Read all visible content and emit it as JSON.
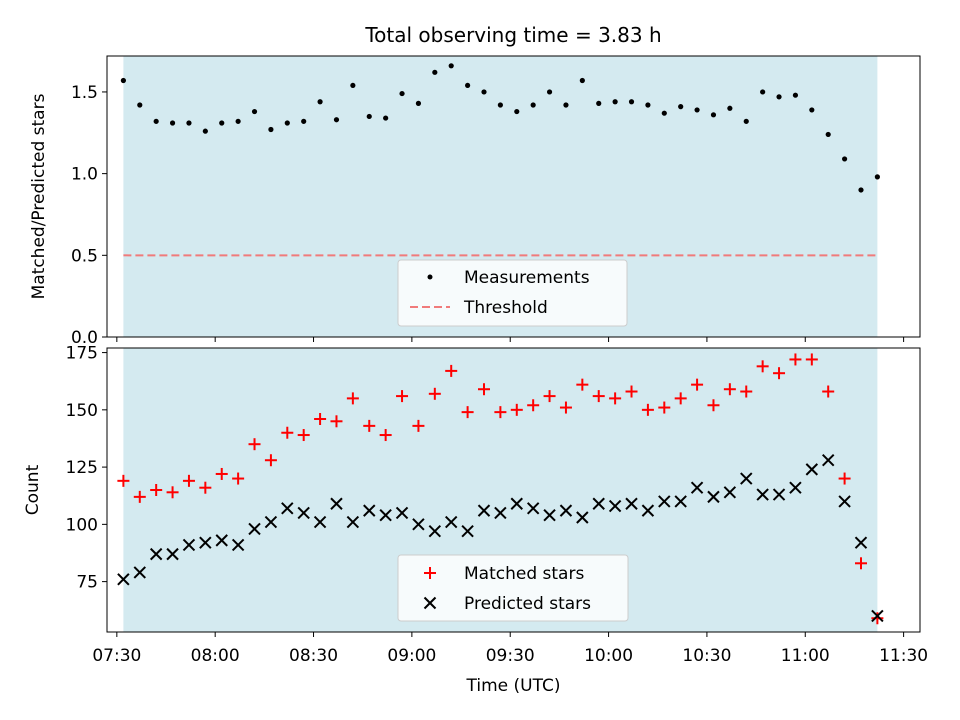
{
  "chart_data": [
    {
      "type": "scatter",
      "title": "Total observing time = 3.83 h",
      "xlabel": "",
      "ylabel": "Matched/Predicted stars",
      "ylim": [
        0,
        1.72
      ],
      "yticks": [
        "0.0",
        "0.5",
        "1.0",
        "1.5"
      ],
      "shaded_background": "#d4eaf0",
      "legend_position": "lower-center",
      "series": [
        {
          "name": "Measurements",
          "marker": "dot",
          "color": "#000000",
          "x": [
            "07:32",
            "07:37",
            "07:42",
            "07:47",
            "07:52",
            "07:57",
            "08:02",
            "08:07",
            "08:12",
            "08:17",
            "08:22",
            "08:27",
            "08:32",
            "08:37",
            "08:42",
            "08:47",
            "08:52",
            "08:57",
            "09:02",
            "09:07",
            "09:12",
            "09:17",
            "09:22",
            "09:27",
            "09:32",
            "09:37",
            "09:42",
            "09:47",
            "09:52",
            "09:57",
            "10:02",
            "10:07",
            "10:12",
            "10:17",
            "10:22",
            "10:27",
            "10:32",
            "10:37",
            "10:42",
            "10:47",
            "10:52",
            "10:57",
            "11:02",
            "11:07",
            "11:12",
            "11:17",
            "11:22"
          ],
          "y": [
            1.57,
            1.42,
            1.32,
            1.31,
            1.31,
            1.26,
            1.31,
            1.32,
            1.38,
            1.27,
            1.31,
            1.32,
            1.44,
            1.33,
            1.54,
            1.35,
            1.34,
            1.49,
            1.43,
            1.62,
            1.66,
            1.54,
            1.5,
            1.42,
            1.38,
            1.42,
            1.5,
            1.42,
            1.57,
            1.43,
            1.44,
            1.44,
            1.42,
            1.37,
            1.41,
            1.39,
            1.36,
            1.4,
            1.32,
            1.5,
            1.47,
            1.48,
            1.39,
            1.24,
            1.09,
            0.9,
            0.98
          ]
        },
        {
          "name": "Threshold",
          "marker": "dashed-line",
          "color": "#f07b7b",
          "value": 0.5
        }
      ]
    },
    {
      "type": "scatter",
      "title": "",
      "xlabel": "Time (UTC)",
      "ylabel": "Count",
      "ylim": [
        53,
        177
      ],
      "yticks": [
        "75",
        "100",
        "125",
        "150",
        "175"
      ],
      "xticks": [
        "07:30",
        "08:00",
        "08:30",
        "09:00",
        "09:30",
        "10:00",
        "10:30",
        "11:00",
        "11:30"
      ],
      "shaded_background": "#d4eaf0",
      "legend_position": "lower-center",
      "series": [
        {
          "name": "Matched stars",
          "marker": "plus",
          "color": "#ff0000",
          "x": [
            "07:32",
            "07:37",
            "07:42",
            "07:47",
            "07:52",
            "07:57",
            "08:02",
            "08:07",
            "08:12",
            "08:17",
            "08:22",
            "08:27",
            "08:32",
            "08:37",
            "08:42",
            "08:47",
            "08:52",
            "08:57",
            "09:02",
            "09:07",
            "09:12",
            "09:17",
            "09:22",
            "09:27",
            "09:32",
            "09:37",
            "09:42",
            "09:47",
            "09:52",
            "09:57",
            "10:02",
            "10:07",
            "10:12",
            "10:17",
            "10:22",
            "10:27",
            "10:32",
            "10:37",
            "10:42",
            "10:47",
            "10:52",
            "10:57",
            "11:02",
            "11:07",
            "11:12",
            "11:17",
            "11:22"
          ],
          "y": [
            119,
            112,
            115,
            114,
            119,
            116,
            122,
            120,
            135,
            128,
            140,
            139,
            146,
            145,
            155,
            143,
            139,
            156,
            143,
            157,
            167,
            149,
            159,
            149,
            150,
            152,
            156,
            151,
            161,
            156,
            155,
            158,
            150,
            151,
            155,
            161,
            152,
            159,
            158,
            169,
            166,
            172,
            172,
            158,
            120,
            83,
            59
          ]
        },
        {
          "name": "Predicted stars",
          "marker": "x",
          "color": "#000000",
          "x": [
            "07:32",
            "07:37",
            "07:42",
            "07:47",
            "07:52",
            "07:57",
            "08:02",
            "08:07",
            "08:12",
            "08:17",
            "08:22",
            "08:27",
            "08:32",
            "08:37",
            "08:42",
            "08:47",
            "08:52",
            "08:57",
            "09:02",
            "09:07",
            "09:12",
            "09:17",
            "09:22",
            "09:27",
            "09:32",
            "09:37",
            "09:42",
            "09:47",
            "09:52",
            "09:57",
            "10:02",
            "10:07",
            "10:12",
            "10:17",
            "10:22",
            "10:27",
            "10:32",
            "10:37",
            "10:42",
            "10:47",
            "10:52",
            "10:57",
            "11:02",
            "11:07",
            "11:12",
            "11:17",
            "11:22"
          ],
          "y": [
            76,
            79,
            87,
            87,
            91,
            92,
            93,
            91,
            98,
            101,
            107,
            105,
            101,
            109,
            101,
            106,
            104,
            105,
            100,
            97,
            101,
            97,
            106,
            105,
            109,
            107,
            104,
            106,
            103,
            109,
            108,
            109,
            106,
            110,
            110,
            116,
            112,
            114,
            120,
            113,
            113,
            116,
            124,
            128,
            110,
            92,
            60
          ]
        }
      ]
    }
  ]
}
